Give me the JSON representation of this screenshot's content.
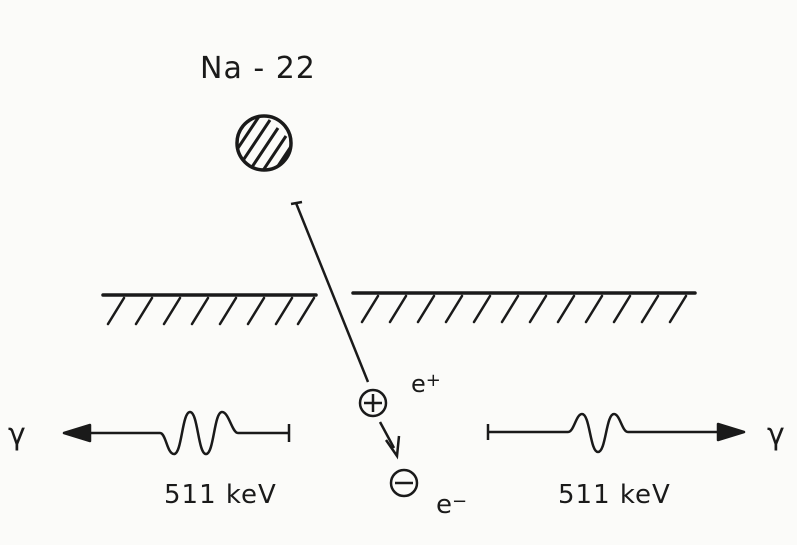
{
  "diagram": {
    "source_label": "Na - 22",
    "gamma_left": "γ",
    "gamma_right": "γ",
    "energy_left": "511 keV",
    "energy_right": "511 keV",
    "positron": {
      "base": "e",
      "charge": "+"
    },
    "electron": {
      "base": "e",
      "charge": "−"
    }
  },
  "colors": {
    "ink": "#1a1a1a",
    "background": "#fbfbf9"
  },
  "icons": {
    "source": "hatched-circle-icon",
    "positron": "circled-plus-icon",
    "electron": "circled-minus-icon"
  }
}
